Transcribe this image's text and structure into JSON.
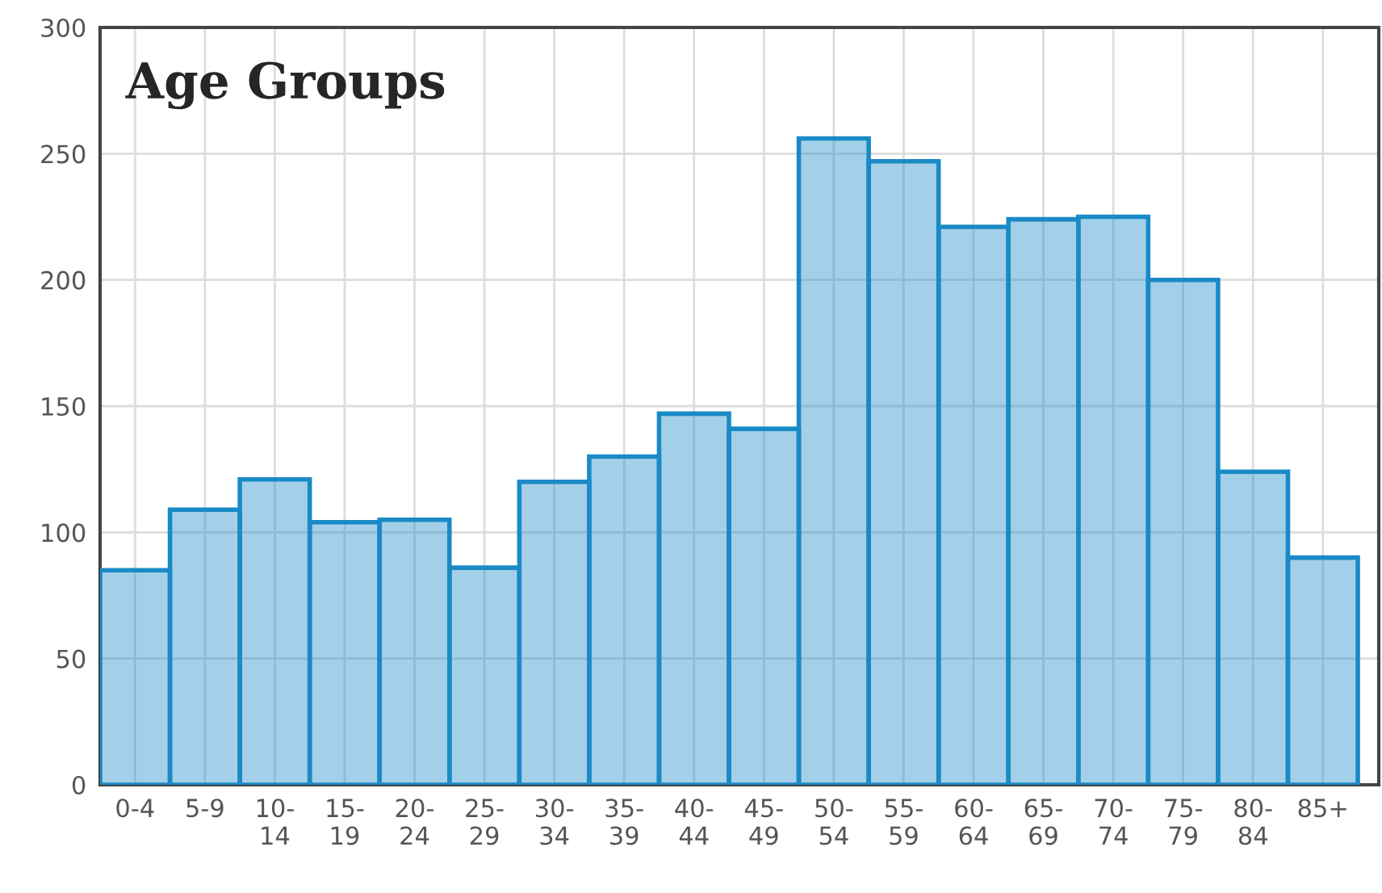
{
  "chart_data": {
    "type": "bar",
    "title": "Age Groups",
    "categories": [
      "0-4",
      "5-9",
      "10-\n14",
      "15-\n19",
      "20-\n24",
      "25-\n29",
      "30-\n34",
      "35-\n39",
      "40-\n44",
      "45-\n49",
      "50-\n54",
      "55-\n59",
      "60-\n64",
      "65-\n69",
      "70-\n74",
      "75-\n79",
      "80-\n84",
      "85+"
    ],
    "values": [
      85,
      109,
      121,
      104,
      105,
      86,
      120,
      130,
      147,
      141,
      256,
      247,
      221,
      224,
      225,
      200,
      124,
      90
    ],
    "color": "#1a8ac6",
    "ylim": [
      0,
      300
    ],
    "yticks": [
      0,
      50,
      100,
      150,
      200,
      250,
      300
    ],
    "grid": true
  }
}
